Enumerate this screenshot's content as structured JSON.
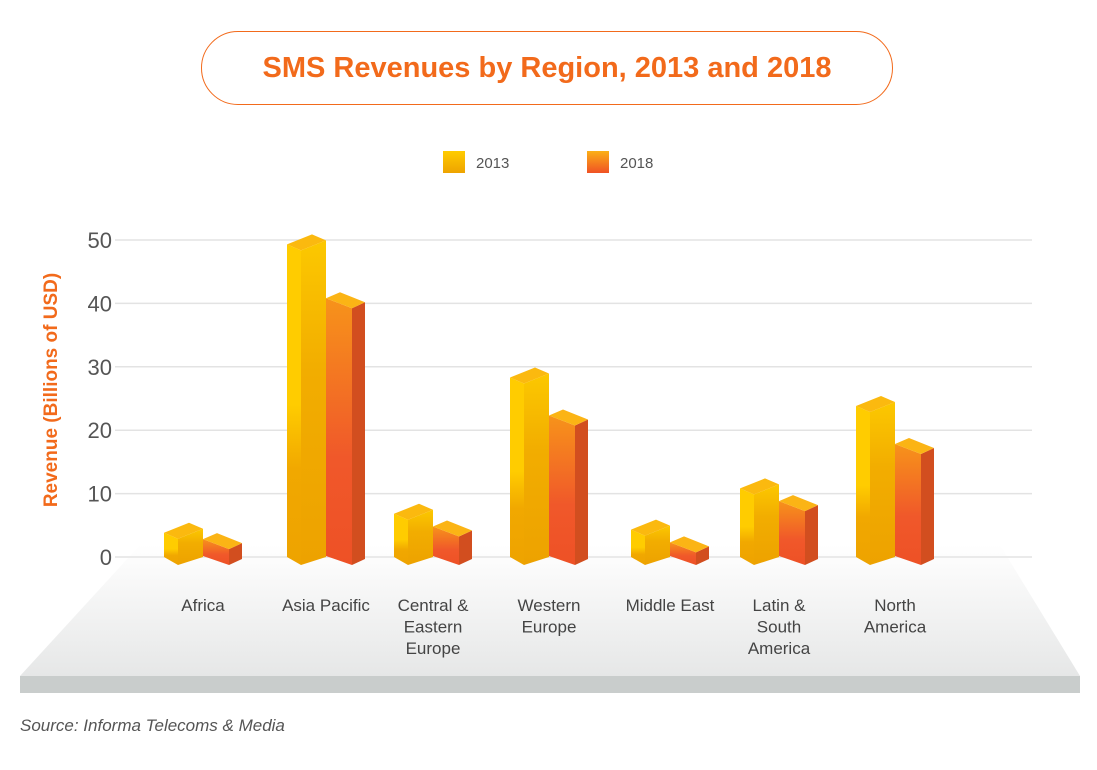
{
  "chart_data": {
    "type": "bar",
    "title": "SMS Revenues by Region, 2013 and 2018",
    "xlabel": "",
    "ylabel": "Revenue (Billions of USD)",
    "ylim": [
      0,
      50
    ],
    "yticks": [
      "0",
      "10",
      "20",
      "30",
      "40",
      "50"
    ],
    "grid": true,
    "legend_position": "top-center",
    "categories": [
      [
        "Africa"
      ],
      [
        "Asia Pacific"
      ],
      [
        "Central &",
        "Eastern",
        "Europe"
      ],
      [
        "Western",
        "Europe"
      ],
      [
        "Middle East"
      ],
      [
        "Latin &",
        "South",
        "America"
      ],
      [
        "North",
        "America"
      ]
    ],
    "series": [
      {
        "name": "2013",
        "values": [
          3.5,
          49,
          6.5,
          28,
          4,
          10.5,
          23.5
        ]
      },
      {
        "name": "2018",
        "values": [
          2.5,
          40.5,
          4.5,
          22,
          2,
          8.5,
          17.5
        ]
      }
    ],
    "colors": {
      "2013": "#f9c200",
      "2018": "#f15a24"
    }
  },
  "source": "Source: Informa Telecoms & Media"
}
